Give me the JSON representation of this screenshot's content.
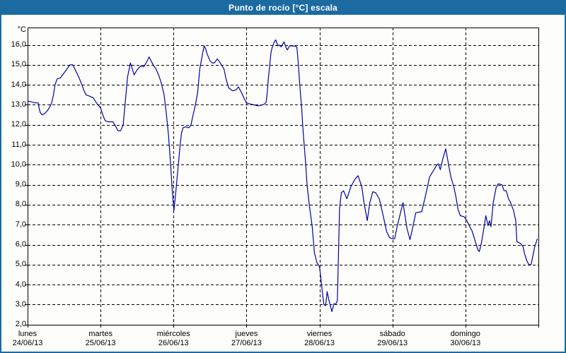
{
  "window": {
    "title": "Punto de rocío [°C] escala"
  },
  "colors": {
    "frame_blue": "#1B6BA1",
    "plot_background": "#FDFEFB",
    "line_blue": "#0000A5",
    "grid_black": "#000000",
    "title_text": "#FFFFFF"
  },
  "chart_data": {
    "type": "line",
    "title": "Punto de rocío [°C] escala",
    "grid": "dashed",
    "legend": "none",
    "line_color": "#0000A5",
    "y_axis": {
      "unit": "°C",
      "ylim": [
        2.0,
        16.9
      ],
      "tick_step": 1.0,
      "ticks": [
        {
          "v": 16,
          "label": "16,0"
        },
        {
          "v": 15,
          "label": "15,0"
        },
        {
          "v": 14,
          "label": "14,0"
        },
        {
          "v": 13,
          "label": "13,0"
        },
        {
          "v": 12,
          "label": "12,0"
        },
        {
          "v": 11,
          "label": "11,0"
        },
        {
          "v": 10,
          "label": "10,0"
        },
        {
          "v": 9,
          "label": "9,0"
        },
        {
          "v": 8,
          "label": "8,0"
        },
        {
          "v": 7,
          "label": "7,0"
        },
        {
          "v": 6,
          "label": "6,0"
        },
        {
          "v": 5,
          "label": "5,0"
        },
        {
          "v": 4,
          "label": "4,0"
        },
        {
          "v": 3,
          "label": "3,0"
        },
        {
          "v": 2,
          "label": "2,0"
        }
      ]
    },
    "x_axis": {
      "xlim_days": [
        0,
        7
      ],
      "days": [
        {
          "name": "lunes",
          "date": "24/06/13"
        },
        {
          "name": "martes",
          "date": "25/06/13"
        },
        {
          "name": "miércoles",
          "date": "26/06/13"
        },
        {
          "name": "jueves",
          "date": "27/06/13"
        },
        {
          "name": "viernes",
          "date": "28/06/13"
        },
        {
          "name": "sábado",
          "date": "29/06/13"
        },
        {
          "name": "domingo",
          "date": "30/06/13"
        }
      ]
    },
    "series": [
      {
        "name": "Punto de rocío [°C]",
        "points": [
          [
            0.0,
            13.2
          ],
          [
            0.05,
            13.15
          ],
          [
            0.1,
            13.1
          ],
          [
            0.145,
            13.1
          ],
          [
            0.16,
            12.8
          ],
          [
            0.175,
            12.6
          ],
          [
            0.2,
            12.5
          ],
          [
            0.23,
            12.55
          ],
          [
            0.27,
            12.7
          ],
          [
            0.305,
            12.9
          ],
          [
            0.33,
            13.1
          ],
          [
            0.355,
            13.5
          ],
          [
            0.375,
            14.0
          ],
          [
            0.405,
            14.3
          ],
          [
            0.45,
            14.35
          ],
          [
            0.48,
            14.5
          ],
          [
            0.53,
            14.75
          ],
          [
            0.58,
            15.0
          ],
          [
            0.62,
            15.0
          ],
          [
            0.66,
            14.7
          ],
          [
            0.7,
            14.4
          ],
          [
            0.745,
            14.0
          ],
          [
            0.775,
            13.7
          ],
          [
            0.8,
            13.5
          ],
          [
            0.84,
            13.45
          ],
          [
            0.9,
            13.35
          ],
          [
            0.935,
            13.15
          ],
          [
            0.965,
            13.0
          ],
          [
            1.0,
            12.85
          ],
          [
            1.04,
            12.4
          ],
          [
            1.065,
            12.2
          ],
          [
            1.1,
            12.15
          ],
          [
            1.17,
            12.15
          ],
          [
            1.21,
            11.9
          ],
          [
            1.24,
            11.7
          ],
          [
            1.275,
            11.7
          ],
          [
            1.31,
            12.0
          ],
          [
            1.33,
            12.8
          ],
          [
            1.345,
            13.4
          ],
          [
            1.37,
            14.4
          ],
          [
            1.41,
            15.1
          ],
          [
            1.435,
            14.8
          ],
          [
            1.46,
            14.5
          ],
          [
            1.5,
            14.75
          ],
          [
            1.55,
            14.95
          ],
          [
            1.59,
            14.9
          ],
          [
            1.625,
            15.1
          ],
          [
            1.665,
            15.4
          ],
          [
            1.7,
            15.15
          ],
          [
            1.73,
            14.95
          ],
          [
            1.76,
            14.8
          ],
          [
            1.8,
            14.45
          ],
          [
            1.835,
            14.05
          ],
          [
            1.87,
            13.5
          ],
          [
            1.9,
            12.6
          ],
          [
            1.93,
            11.5
          ],
          [
            1.96,
            10.0
          ],
          [
            1.985,
            8.6
          ],
          [
            2.005,
            7.7
          ],
          [
            2.03,
            8.6
          ],
          [
            2.06,
            9.8
          ],
          [
            2.09,
            11.0
          ],
          [
            2.11,
            11.6
          ],
          [
            2.13,
            11.85
          ],
          [
            2.17,
            11.9
          ],
          [
            2.21,
            11.85
          ],
          [
            2.24,
            12.0
          ],
          [
            2.265,
            12.45
          ],
          [
            2.3,
            13.0
          ],
          [
            2.33,
            13.6
          ],
          [
            2.36,
            14.8
          ],
          [
            2.4,
            15.6
          ],
          [
            2.42,
            15.95
          ],
          [
            2.44,
            15.8
          ],
          [
            2.46,
            15.55
          ],
          [
            2.5,
            15.2
          ],
          [
            2.53,
            15.1
          ],
          [
            2.56,
            15.1
          ],
          [
            2.6,
            15.3
          ],
          [
            2.63,
            15.15
          ],
          [
            2.69,
            14.8
          ],
          [
            2.72,
            14.3
          ],
          [
            2.755,
            13.85
          ],
          [
            2.81,
            13.7
          ],
          [
            2.855,
            13.75
          ],
          [
            2.89,
            13.9
          ],
          [
            2.94,
            13.55
          ],
          [
            2.97,
            13.3
          ],
          [
            3.0,
            13.1
          ],
          [
            3.04,
            13.05
          ],
          [
            3.1,
            13.0
          ],
          [
            3.16,
            12.95
          ],
          [
            3.22,
            13.0
          ],
          [
            3.25,
            13.05
          ],
          [
            3.27,
            13.15
          ],
          [
            3.285,
            13.65
          ],
          [
            3.3,
            14.35
          ],
          [
            3.32,
            15.05
          ],
          [
            3.335,
            15.6
          ],
          [
            3.35,
            15.85
          ],
          [
            3.38,
            16.15
          ],
          [
            3.4,
            16.25
          ],
          [
            3.43,
            15.95
          ],
          [
            3.45,
            16.0
          ],
          [
            3.475,
            15.9
          ],
          [
            3.515,
            16.15
          ],
          [
            3.545,
            15.85
          ],
          [
            3.56,
            15.75
          ],
          [
            3.59,
            15.95
          ],
          [
            3.65,
            15.95
          ],
          [
            3.69,
            15.9
          ],
          [
            3.71,
            15.05
          ],
          [
            3.725,
            14.25
          ],
          [
            3.74,
            13.5
          ],
          [
            3.755,
            12.9
          ],
          [
            3.77,
            12.0
          ],
          [
            3.79,
            11.0
          ],
          [
            3.81,
            10.1
          ],
          [
            3.83,
            9.0
          ],
          [
            3.86,
            8.0
          ],
          [
            3.9,
            6.9
          ],
          [
            3.93,
            5.6
          ],
          [
            3.965,
            5.1
          ],
          [
            4.0,
            4.9
          ],
          [
            4.02,
            4.3
          ],
          [
            4.04,
            3.6
          ],
          [
            4.06,
            3.0
          ],
          [
            4.085,
            2.95
          ],
          [
            4.105,
            3.65
          ],
          [
            4.13,
            3.2
          ],
          [
            4.17,
            2.65
          ],
          [
            4.2,
            3.05
          ],
          [
            4.22,
            3.0
          ],
          [
            4.245,
            3.2
          ],
          [
            4.26,
            5.5
          ],
          [
            4.275,
            7.8
          ],
          [
            4.3,
            8.6
          ],
          [
            4.33,
            8.7
          ],
          [
            4.375,
            8.3
          ],
          [
            4.43,
            8.9
          ],
          [
            4.49,
            9.3
          ],
          [
            4.53,
            9.45
          ],
          [
            4.58,
            8.9
          ],
          [
            4.61,
            8.1
          ],
          [
            4.655,
            7.2
          ],
          [
            4.69,
            8.1
          ],
          [
            4.73,
            8.65
          ],
          [
            4.77,
            8.6
          ],
          [
            4.82,
            8.3
          ],
          [
            4.87,
            7.5
          ],
          [
            4.92,
            6.65
          ],
          [
            4.96,
            6.35
          ],
          [
            5.0,
            6.3
          ],
          [
            5.03,
            6.3
          ],
          [
            5.07,
            7.0
          ],
          [
            5.11,
            7.6
          ],
          [
            5.145,
            8.1
          ],
          [
            5.17,
            7.5
          ],
          [
            5.2,
            6.8
          ],
          [
            5.24,
            6.25
          ],
          [
            5.28,
            6.9
          ],
          [
            5.32,
            7.6
          ],
          [
            5.4,
            7.65
          ],
          [
            5.45,
            8.4
          ],
          [
            5.48,
            8.9
          ],
          [
            5.51,
            9.4
          ],
          [
            5.56,
            9.7
          ],
          [
            5.61,
            10.0
          ],
          [
            5.63,
            10.05
          ],
          [
            5.655,
            9.75
          ],
          [
            5.69,
            10.3
          ],
          [
            5.73,
            10.8
          ],
          [
            5.77,
            10.0
          ],
          [
            5.8,
            9.4
          ],
          [
            5.84,
            8.9
          ],
          [
            5.87,
            8.4
          ],
          [
            5.9,
            7.75
          ],
          [
            5.93,
            7.45
          ],
          [
            5.98,
            7.4
          ],
          [
            6.0,
            7.3
          ],
          [
            6.02,
            7.2
          ],
          [
            6.06,
            6.9
          ],
          [
            6.09,
            6.7
          ],
          [
            6.14,
            6.1
          ],
          [
            6.17,
            5.75
          ],
          [
            6.19,
            5.65
          ],
          [
            6.22,
            6.1
          ],
          [
            6.25,
            6.75
          ],
          [
            6.28,
            7.45
          ],
          [
            6.31,
            6.95
          ],
          [
            6.33,
            7.2
          ],
          [
            6.35,
            6.9
          ],
          [
            6.38,
            8.1
          ],
          [
            6.42,
            8.85
          ],
          [
            6.45,
            9.05
          ],
          [
            6.5,
            9.0
          ],
          [
            6.53,
            8.7
          ],
          [
            6.56,
            8.7
          ],
          [
            6.59,
            8.3
          ],
          [
            6.62,
            8.1
          ],
          [
            6.66,
            7.7
          ],
          [
            6.69,
            7.2
          ],
          [
            6.705,
            6.15
          ],
          [
            6.76,
            6.05
          ],
          [
            6.79,
            5.9
          ],
          [
            6.81,
            5.55
          ],
          [
            6.84,
            5.2
          ],
          [
            6.87,
            5.0
          ],
          [
            6.9,
            5.0
          ],
          [
            6.93,
            5.55
          ],
          [
            6.95,
            5.9
          ],
          [
            6.985,
            6.3
          ]
        ]
      }
    ]
  }
}
